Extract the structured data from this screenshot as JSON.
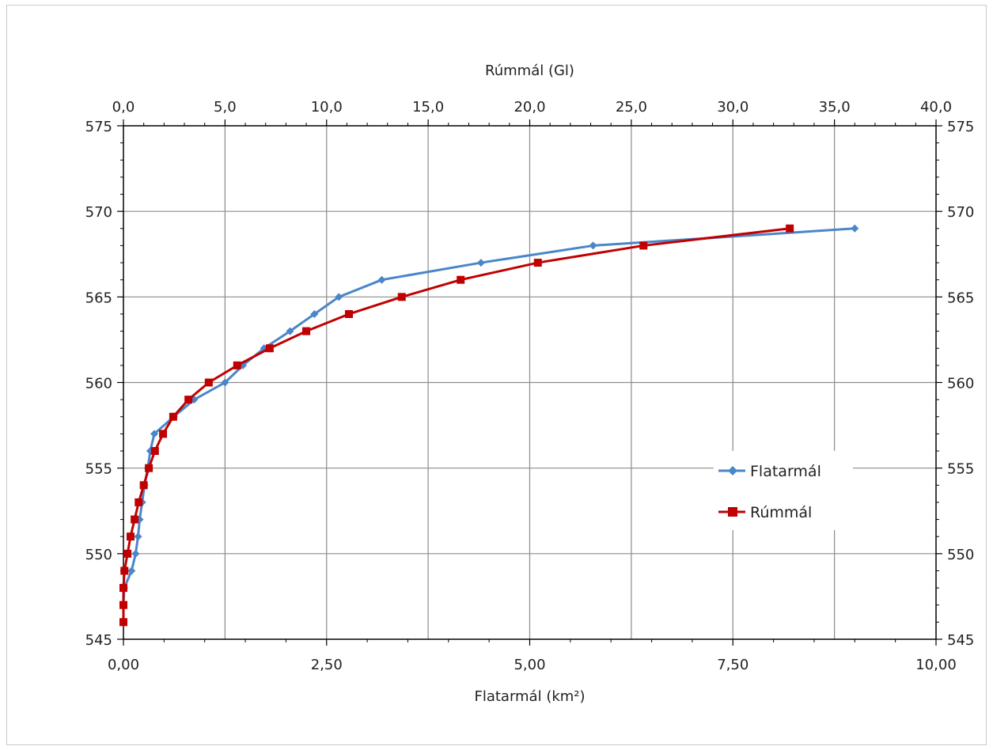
{
  "chart_data": {
    "type": "line",
    "title": "",
    "xlabel": "Flatarmál (km²)",
    "x2label": "Rúmmál (Gl)",
    "ylabel": "",
    "xlim": [
      0,
      10
    ],
    "x2lim": [
      0,
      40
    ],
    "ylim": [
      545,
      575
    ],
    "x_ticks": [
      "0,00",
      "2,50",
      "5,00",
      "7,50",
      "10,00"
    ],
    "x2_ticks": [
      "0,0",
      "5,0",
      "10,0",
      "15,0",
      "20,0",
      "25,0",
      "30,0",
      "35,0",
      "40,0"
    ],
    "y_ticks": [
      "545",
      "550",
      "555",
      "560",
      "565",
      "570",
      "575"
    ],
    "grid": true,
    "legend_position": "right",
    "series": [
      {
        "name": "Flatarmál",
        "axis": "bottom",
        "color": "#4a86c8",
        "marker": "diamond",
        "points": [
          [
            0.0,
            546
          ],
          [
            0.0,
            547
          ],
          [
            0.01,
            548
          ],
          [
            0.1,
            549
          ],
          [
            0.15,
            550
          ],
          [
            0.18,
            551
          ],
          [
            0.2,
            552
          ],
          [
            0.23,
            553
          ],
          [
            0.26,
            554
          ],
          [
            0.3,
            555
          ],
          [
            0.33,
            556
          ],
          [
            0.38,
            557
          ],
          [
            0.62,
            558
          ],
          [
            0.87,
            559
          ],
          [
            1.25,
            560
          ],
          [
            1.47,
            561
          ],
          [
            1.73,
            562
          ],
          [
            2.05,
            563
          ],
          [
            2.35,
            564
          ],
          [
            2.65,
            565
          ],
          [
            3.18,
            566
          ],
          [
            4.4,
            567
          ],
          [
            5.78,
            568
          ],
          [
            9.0,
            569
          ]
        ]
      },
      {
        "name": "Rúmmál",
        "axis": "top",
        "color": "#c00000",
        "marker": "square",
        "points": [
          [
            0.0,
            546
          ],
          [
            0.0,
            547
          ],
          [
            0.0,
            548
          ],
          [
            0.05,
            549
          ],
          [
            0.2,
            550
          ],
          [
            0.35,
            551
          ],
          [
            0.55,
            552
          ],
          [
            0.75,
            553
          ],
          [
            1.0,
            554
          ],
          [
            1.25,
            555
          ],
          [
            1.55,
            556
          ],
          [
            1.95,
            557
          ],
          [
            2.45,
            558
          ],
          [
            3.2,
            559
          ],
          [
            4.2,
            560
          ],
          [
            5.6,
            561
          ],
          [
            7.2,
            562
          ],
          [
            9.0,
            563
          ],
          [
            11.1,
            564
          ],
          [
            13.7,
            565
          ],
          [
            16.6,
            566
          ],
          [
            20.4,
            567
          ],
          [
            25.6,
            568
          ],
          [
            32.8,
            569
          ]
        ]
      }
    ]
  }
}
